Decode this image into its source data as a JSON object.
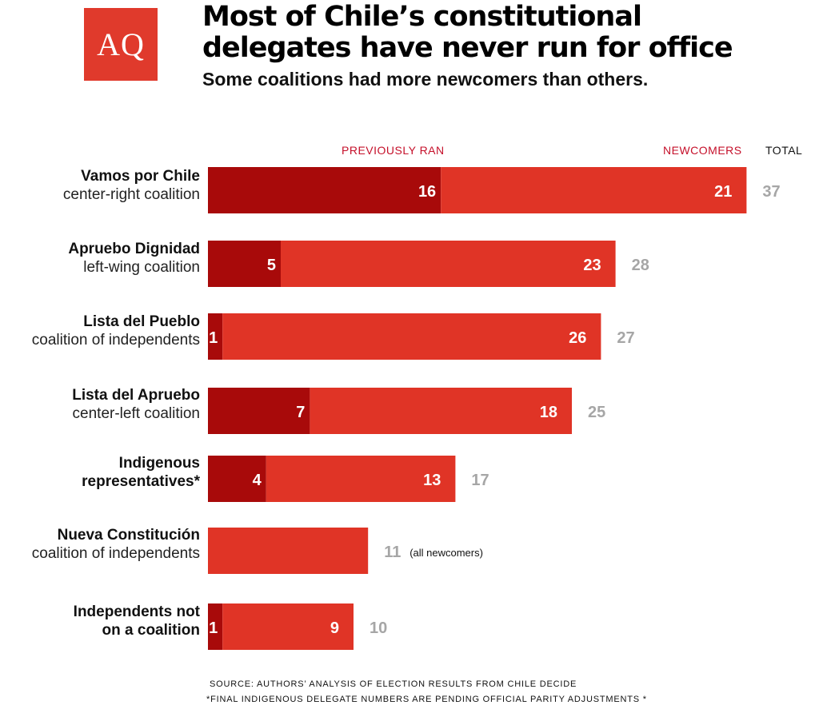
{
  "logo": {
    "text": "AQ"
  },
  "header": {
    "title": "Most of Chile’s constitutional delegates have never run for office",
    "subtitle": "Some coalitions had more newcomers than others."
  },
  "columns": {
    "previously_ran": "PREVIOUSLY RAN",
    "newcomers": "NEWCOMERS",
    "total": "TOTAL"
  },
  "rows": [
    {
      "name": "Vamos por Chile",
      "desc": "center-right coalition"
    },
    {
      "name": "Apruebo Dignidad",
      "desc": "left-wing coalition"
    },
    {
      "name": "Lista del Pueblo",
      "desc": "coalition of independents"
    },
    {
      "name": "Lista del Apruebo",
      "desc": "center-left coalition"
    },
    {
      "name": "Indigenous",
      "desc": "representatives*"
    },
    {
      "name": "Nueva Constitución",
      "desc": "coalition of independents"
    },
    {
      "name": "Independents not",
      "desc": "on a coalition"
    }
  ],
  "chart_data": {
    "type": "bar",
    "orientation": "horizontal",
    "stacked": true,
    "categories": [
      "Vamos por Chile center-right coalition",
      "Apruebo Dignidad left-wing coalition",
      "Lista del Pueblo coalition of independents",
      "Lista del Apruebo center-left coalition",
      "Indigenous representatives*",
      "Nueva Constitución coalition of independents",
      "Independents not on a coalition"
    ],
    "series": [
      {
        "name": "PREVIOUSLY RAN",
        "values": [
          16,
          5,
          1,
          7,
          4,
          0,
          1
        ],
        "color": "#a80a0a"
      },
      {
        "name": "NEWCOMERS",
        "values": [
          21,
          23,
          26,
          18,
          13,
          11,
          9
        ],
        "color": "#e03426"
      }
    ],
    "totals": [
      37,
      28,
      27,
      25,
      17,
      11,
      10
    ],
    "total_notes": [
      "",
      "",
      "",
      "",
      "",
      "(all newcomers)",
      ""
    ],
    "axis_visible": false,
    "grid": false,
    "legend": "column headers above bars",
    "value_labels": true,
    "total_color": "#a6a6a6",
    "label_color": "#ffffff"
  },
  "footer": {
    "source": "SOURCE: AUTHORS’ ANALYSIS OF ELECTION RESULTS FROM CHILE DECIDE",
    "note": "*FINAL INDIGENOUS DELEGATE NUMBERS ARE PENDING OFFICIAL PARITY ADJUSTMENTS *"
  }
}
